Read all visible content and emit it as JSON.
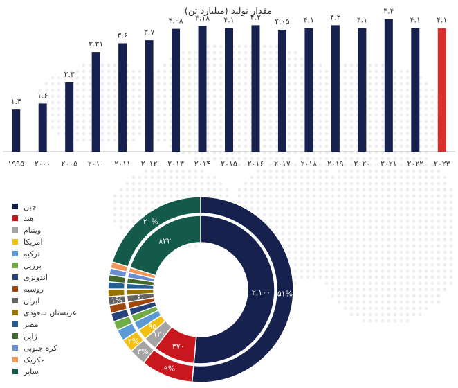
{
  "chart_data": [
    {
      "type": "bar",
      "title": "مقدار تولید (میلیارد تن)",
      "categories": [
        "۱۹۹۵",
        "۲۰۰۰",
        "۲۰۰۵",
        "۲۰۱۰",
        "۲۰۱۱",
        "۲۰۱۲",
        "۲۰۱۳",
        "۲۰۱۴",
        "۲۰۱۵",
        "۲۰۱۶",
        "۲۰۱۷",
        "۲۰۱۸",
        "۲۰۱۹",
        "۲۰۲۰",
        "۲۰۲۱",
        "۲۰۲۲",
        "۲۰۲۳"
      ],
      "values": [
        1.4,
        1.6,
        2.3,
        3.31,
        3.6,
        3.7,
        4.08,
        4.18,
        4.1,
        4.2,
        4.05,
        4.1,
        4.2,
        4.1,
        4.4,
        4.1,
        4.1
      ],
      "value_labels": [
        "۱.۴",
        "۱.۶",
        "۲.۳",
        "۳.۳۱",
        "۳.۶",
        "۳.۷",
        "۴.۰۸",
        "۴.۱۸",
        "۴.۱",
        "۴.۲",
        "۴.۰۵",
        "۴.۱",
        "۴.۲",
        "۴.۱",
        "۴.۴",
        "۴.۱",
        "۴.۱"
      ],
      "ylim": [
        0,
        4.6
      ],
      "colors": {
        "default": "#16224d",
        "highlight": "#d82f2f"
      },
      "highlight_index": 16,
      "grid": false
    },
    {
      "type": "pie",
      "subtype": "double-donut",
      "legend_position": "left",
      "series": [
        {
          "name": "چین",
          "value": 2100,
          "percent": 51,
          "color": "#16224d",
          "inner_label": "۲,۱۰۰",
          "outer_label": "۵۱%"
        },
        {
          "name": "هند",
          "value": 370,
          "percent": 9,
          "color": "#c8171d",
          "inner_label": "۳۷۰",
          "outer_label": "۹%"
        },
        {
          "name": "ویتنام",
          "value": 120,
          "percent": 3,
          "color": "#a4a4a4",
          "inner_label": "۱۲۰",
          "outer_label": "۳%"
        },
        {
          "name": "آمریکا",
          "value": 95,
          "percent": 2,
          "color": "#f2c014",
          "inner_label": "۹۵",
          "outer_label": "۲%"
        },
        {
          "name": "ترکیه",
          "value": 80,
          "percent": 2,
          "color": "#5b9bd5",
          "inner_label": "",
          "outer_label": ""
        },
        {
          "name": "برزیل",
          "value": 65,
          "percent": 2,
          "color": "#70ad47",
          "inner_label": "",
          "outer_label": ""
        },
        {
          "name": "اندونزی",
          "value": 62,
          "percent": 1.5,
          "color": "#264478",
          "inner_label": "",
          "outer_label": ""
        },
        {
          "name": "روسیه",
          "value": 58,
          "percent": 1.4,
          "color": "#9e480e",
          "inner_label": "",
          "outer_label": ""
        },
        {
          "name": "ایران",
          "value": 60,
          "percent": 1,
          "color": "#636363",
          "inner_label": "۶۰",
          "outer_label": "۱%"
        },
        {
          "name": "عربستان سعودی",
          "value": 55,
          "percent": 1.3,
          "color": "#997300",
          "inner_label": "",
          "outer_label": ""
        },
        {
          "name": "مصر",
          "value": 50,
          "percent": 1.2,
          "color": "#255e91",
          "inner_label": "",
          "outer_label": ""
        },
        {
          "name": "ژاپن",
          "value": 50,
          "percent": 1.2,
          "color": "#43682b",
          "inner_label": "",
          "outer_label": ""
        },
        {
          "name": "کره جنوبی",
          "value": 48,
          "percent": 1.2,
          "color": "#698ed0",
          "inner_label": "",
          "outer_label": ""
        },
        {
          "name": "مکزیک",
          "value": 45,
          "percent": 1.1,
          "color": "#f1975a",
          "inner_label": "",
          "outer_label": ""
        },
        {
          "name": "سایر",
          "value": 822,
          "percent": 20,
          "color": "#145a4a",
          "inner_label": "۸۲۲",
          "outer_label": "۲۰%"
        }
      ]
    }
  ]
}
